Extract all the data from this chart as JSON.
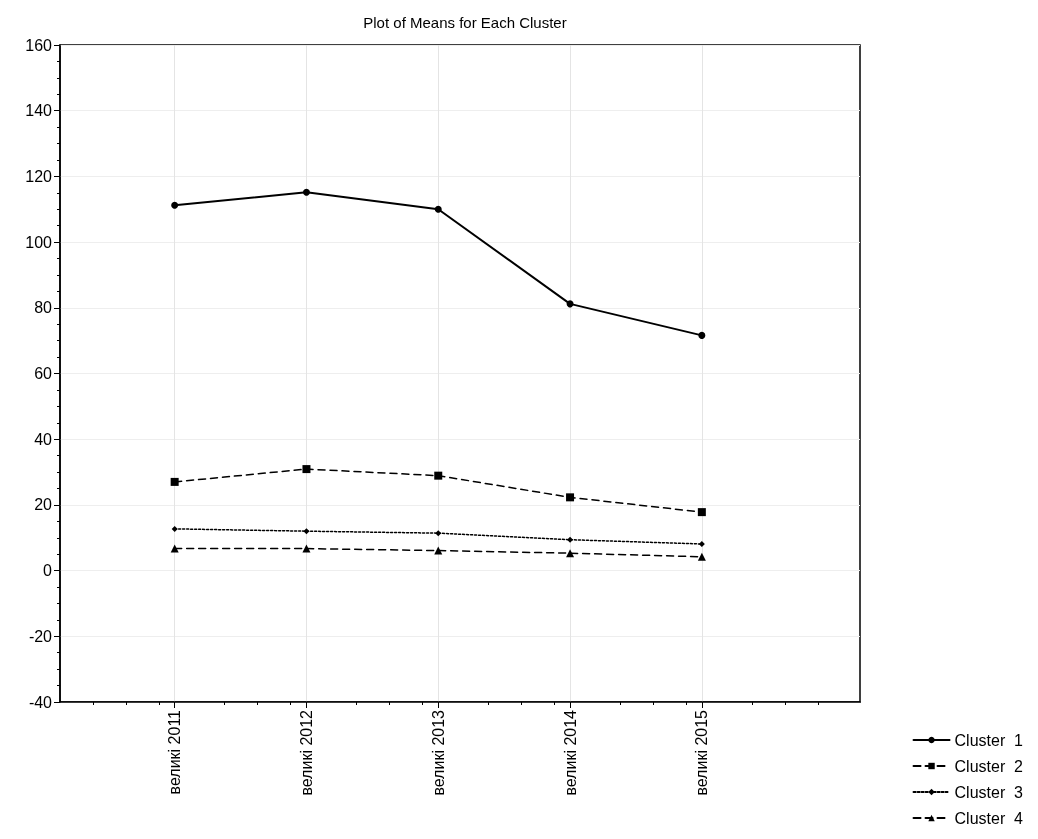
{
  "chart_data": {
    "type": "line",
    "title": "Plot of Means for Each Cluster",
    "categories": [
      "великі 2011",
      "великі 2012",
      "великі 2013",
      "великі 2014",
      "великі 2015"
    ],
    "series": [
      {
        "name": "Cluster  1",
        "color": "#000000",
        "marker": "circle",
        "line_style": "solid",
        "values": [
          111.2,
          115.2,
          110,
          81.2,
          71.6
        ]
      },
      {
        "name": "Cluster  2",
        "color": "#000000",
        "marker": "square",
        "line_style": "dashed",
        "values": [
          27,
          30.9,
          28.9,
          22.3,
          17.8
        ]
      },
      {
        "name": "Cluster  3",
        "color": "#000000",
        "marker": "diamond",
        "line_style": "dotted",
        "values": [
          12.7,
          12,
          11.4,
          9.4,
          8.1
        ]
      },
      {
        "name": "Cluster  4",
        "color": "#000000",
        "marker": "triangle",
        "line_style": "dashed",
        "values": [
          6.7,
          6.7,
          6.1,
          5.3,
          4.2
        ]
      }
    ],
    "ylim": [
      -40,
      160
    ],
    "yticks": [
      -40,
      -20,
      0,
      20,
      40,
      60,
      80,
      100,
      120,
      140,
      160
    ],
    "grid": true,
    "legend": "bottom right"
  }
}
